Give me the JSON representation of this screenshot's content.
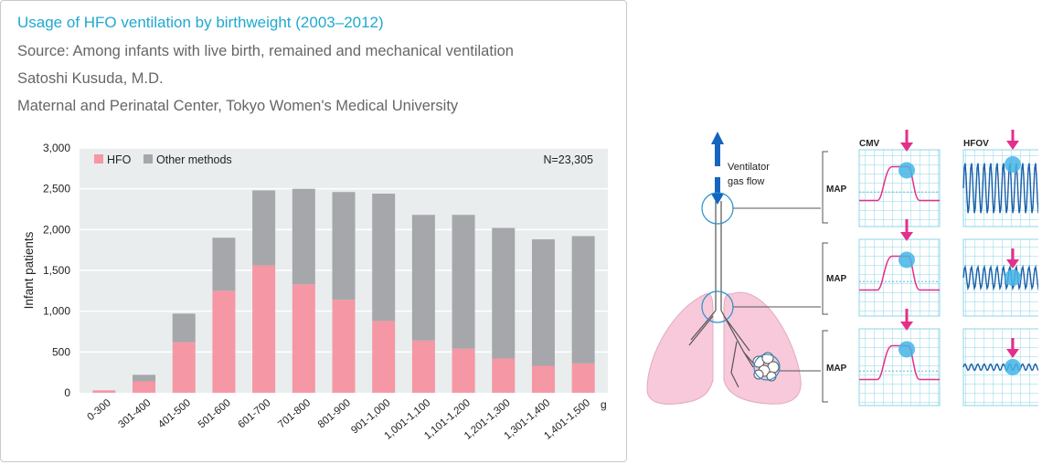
{
  "header": {
    "title": "Usage of HFO ventilation by birthweight (2003–2012)",
    "source": "Source: Among infants with live birth, remained and mechanical ventilation",
    "author": "Satoshi Kusuda, M.D.",
    "affiliation": "Maternal and Perinatal Center, Tokyo Women's Medical University"
  },
  "chart_data": {
    "type": "bar",
    "stacked": true,
    "categories": [
      "0-300",
      "301-400",
      "401-500",
      "501-600",
      "601-700",
      "701-800",
      "801-900",
      "901-1,000",
      "1,001-1,100",
      "1,101-1,200",
      "1,201-1,300",
      "1,301-1,400",
      "1,401-1,500"
    ],
    "series": [
      {
        "name": "HFO",
        "color": "#f597a4",
        "values": [
          30,
          140,
          620,
          1250,
          1560,
          1330,
          1140,
          880,
          640,
          540,
          420,
          330,
          360
        ]
      },
      {
        "name": "Other methods",
        "color": "#a5a7aa",
        "values": [
          0,
          80,
          350,
          650,
          920,
          1170,
          1320,
          1560,
          1540,
          1640,
          1600,
          1550,
          1560
        ]
      }
    ],
    "ylabel": "Infant patients",
    "xunit": "g",
    "ylim": [
      0,
      3000
    ],
    "yticks": [
      0,
      500,
      1000,
      1500,
      2000,
      2500,
      3000
    ],
    "ytick_labels": [
      "0",
      "500",
      "1,000",
      "1,500",
      "2,000",
      "2,500",
      "3,000"
    ],
    "annotation": "N=23,305",
    "legend_position": "top-left",
    "grid": true
  },
  "diagram": {
    "flow_label_1": "Ventilator",
    "flow_label_2": "gas flow",
    "col_cmv": "CMV",
    "col_hfov": "HFOV",
    "map_label": "MAP",
    "colors": {
      "accent": "#e62e8b",
      "grid": "#8cd4e6",
      "circle": "#45b5e6",
      "arrow": "#1565c0",
      "lung": "#f7c9da",
      "wave": "#1a5fa8"
    }
  }
}
